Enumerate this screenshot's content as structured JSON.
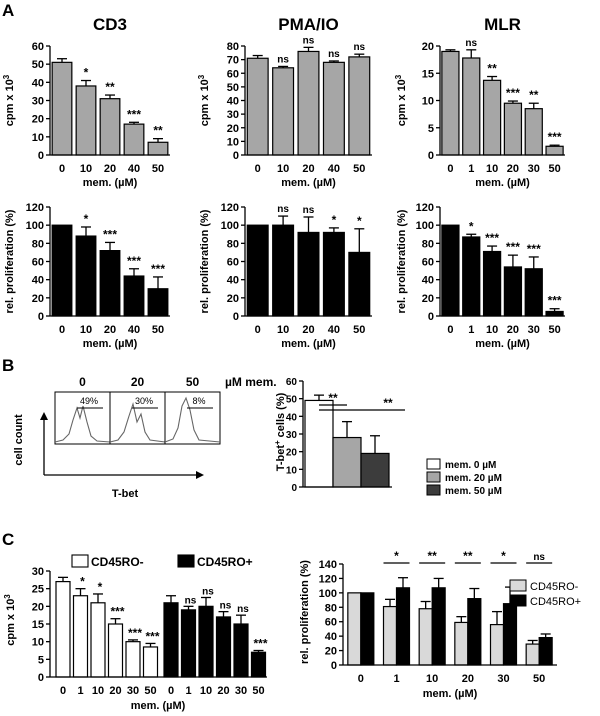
{
  "figure": {
    "panel_labels": [
      "A",
      "B",
      "C"
    ]
  },
  "colors": {
    "gray": "#a6a6a6",
    "black": "#000000",
    "white": "#ffffff",
    "lightgray": "#d9d9d9",
    "darkgray": "#3c3c3c"
  },
  "chart_data": [
    {
      "id": "A_CD3_cpm",
      "type": "bar",
      "title": "CD3",
      "ylabel": "cpm x 10",
      "ylabel_sup": "3",
      "xlabel": "mem. (µM)",
      "categories": [
        "0",
        "10",
        "20",
        "40",
        "50"
      ],
      "values": [
        51,
        38,
        31,
        17,
        7
      ],
      "errors": [
        2,
        3,
        2,
        1,
        2
      ],
      "significance": [
        "",
        "*",
        "**",
        "***",
        "**"
      ],
      "ylim": [
        0,
        60
      ],
      "yticks": [
        "0",
        "10",
        "20",
        "30",
        "40",
        "50",
        "60"
      ],
      "fill": "gray"
    },
    {
      "id": "A_PMAIO_cpm",
      "type": "bar",
      "title": "PMA/IO",
      "ylabel": "cpm x 10",
      "ylabel_sup": "3",
      "xlabel": "mem. (µM)",
      "categories": [
        "0",
        "10",
        "20",
        "40",
        "50"
      ],
      "values": [
        71,
        64,
        76,
        68,
        72
      ],
      "errors": [
        2,
        1,
        3,
        1,
        2
      ],
      "significance": [
        "",
        "ns",
        "ns",
        "ns",
        "ns"
      ],
      "ylim": [
        0,
        80
      ],
      "yticks": [
        "0",
        "10",
        "20",
        "30",
        "40",
        "50",
        "60",
        "70",
        "80"
      ],
      "fill": "gray"
    },
    {
      "id": "A_MLR_cpm",
      "type": "bar",
      "title": "MLR",
      "ylabel": "cpm x 10",
      "ylabel_sup": "3",
      "xlabel": "mem. (µM)",
      "categories": [
        "0",
        "1",
        "10",
        "20",
        "30",
        "50"
      ],
      "values": [
        19,
        17.8,
        13.7,
        9.5,
        8.5,
        1.6
      ],
      "errors": [
        0.3,
        1.5,
        0.7,
        0.4,
        1,
        0.2
      ],
      "significance": [
        "",
        "ns",
        "**",
        "***",
        "**",
        "***"
      ],
      "ylim": [
        0,
        20
      ],
      "yticks": [
        "0",
        "5",
        "10",
        "15",
        "20"
      ],
      "fill": "gray"
    },
    {
      "id": "A_CD3_rel",
      "type": "bar",
      "title": "",
      "ylabel": "rel. proliferation (%)",
      "xlabel": "mem. (µM)",
      "categories": [
        "0",
        "10",
        "20",
        "40",
        "50"
      ],
      "values": [
        100,
        88,
        72,
        44,
        30
      ],
      "errors": [
        0,
        10,
        9,
        8,
        13
      ],
      "significance": [
        "",
        "*",
        "***",
        "***",
        "***"
      ],
      "ylim": [
        0,
        120
      ],
      "yticks": [
        "0",
        "20",
        "40",
        "60",
        "80",
        "100",
        "120"
      ],
      "fill": "black"
    },
    {
      "id": "A_PMAIO_rel",
      "type": "bar",
      "title": "",
      "ylabel": "rel. proliferation (%)",
      "xlabel": "mem. (µM)",
      "categories": [
        "0",
        "10",
        "20",
        "40",
        "50"
      ],
      "values": [
        100,
        100,
        92,
        92,
        70
      ],
      "errors": [
        0,
        10,
        17,
        5,
        26
      ],
      "significance": [
        "",
        "ns",
        "ns",
        "*",
        "*"
      ],
      "ylim": [
        0,
        120
      ],
      "yticks": [
        "0",
        "20",
        "40",
        "60",
        "80",
        "100",
        "120"
      ],
      "fill": "black"
    },
    {
      "id": "A_MLR_rel",
      "type": "bar",
      "title": "",
      "ylabel": "rel. proliferation (%)",
      "xlabel": "mem. (µM)",
      "categories": [
        "0",
        "1",
        "10",
        "20",
        "30",
        "50"
      ],
      "values": [
        100,
        87,
        71,
        54,
        52,
        5
      ],
      "errors": [
        0,
        3,
        6,
        13,
        13,
        3
      ],
      "significance": [
        "",
        "*",
        "***",
        "***",
        "***",
        "***"
      ],
      "ylim": [
        0,
        120
      ],
      "yticks": [
        "0",
        "20",
        "40",
        "60",
        "80",
        "100",
        "120"
      ],
      "fill": "black"
    },
    {
      "id": "B_histograms",
      "type": "histogram",
      "ylabel": "cell count",
      "xlabel": "T-bet",
      "header_suffix": "µM mem.",
      "panels": [
        {
          "dose": "0",
          "percent": "49%"
        },
        {
          "dose": "20",
          "percent": "30%"
        },
        {
          "dose": "50",
          "percent": "8%"
        }
      ]
    },
    {
      "id": "B_Tbet",
      "type": "bar",
      "ylabel": "T-bet",
      "ylabel_sup": "+",
      "ylabel_rest": "cells (%)",
      "categories": [
        "0",
        "20",
        "50"
      ],
      "values": [
        49,
        28,
        19
      ],
      "errors": [
        3,
        9,
        10
      ],
      "fills": [
        "white",
        "gray",
        "darkgray"
      ],
      "ylim": [
        0,
        60
      ],
      "yticks": [
        "0",
        "10",
        "20",
        "30",
        "40",
        "50",
        "60"
      ],
      "significance": [
        "**",
        "**"
      ],
      "legend": [
        "mem.   0 µM",
        "mem. 20 µM",
        "mem. 50 µM"
      ]
    },
    {
      "id": "C_cpm",
      "type": "bar",
      "ylabel": "cpm x 10",
      "ylabel_sup": "3",
      "xlabel": "mem. (µM)",
      "ylim": [
        0,
        30
      ],
      "yticks": [
        "0",
        "5",
        "10",
        "15",
        "20",
        "25",
        "30"
      ],
      "series": [
        {
          "name": "CD45RO-",
          "fill": "white",
          "categories": [
            "0",
            "1",
            "10",
            "20",
            "30",
            "50"
          ],
          "values": [
            27,
            23,
            21,
            15,
            10,
            8.5
          ],
          "errors": [
            1.2,
            2,
            2.5,
            1.5,
            0.5,
            1
          ],
          "significance": [
            "",
            "*",
            "*",
            "***",
            "***",
            "***"
          ]
        },
        {
          "name": "CD45RO+",
          "fill": "black",
          "categories": [
            "0",
            "1",
            "10",
            "20",
            "30",
            "50"
          ],
          "values": [
            21,
            19,
            20,
            17,
            15,
            7
          ],
          "errors": [
            2,
            1,
            2.5,
            1.5,
            2.5,
            0.5
          ],
          "significance": [
            "",
            "ns",
            "ns",
            "ns",
            "ns",
            "***"
          ]
        }
      ]
    },
    {
      "id": "C_rel",
      "type": "bar",
      "ylabel": "rel. proliferation (%)",
      "xlabel": "mem. (µM)",
      "categories": [
        "0",
        "1",
        "10",
        "20",
        "30",
        "50"
      ],
      "ylim": [
        0,
        140
      ],
      "yticks": [
        "0",
        "20",
        "40",
        "60",
        "80",
        "100",
        "120",
        "140"
      ],
      "series": [
        {
          "name": "CD45RO-",
          "fill": "lightgray",
          "values": [
            100,
            81,
            78,
            59,
            56,
            29
          ],
          "errors": [
            0,
            10,
            10,
            8,
            18,
            5
          ]
        },
        {
          "name": "CD45RO+",
          "fill": "black",
          "values": [
            100,
            107,
            107,
            92,
            85,
            38
          ],
          "errors": [
            0,
            14,
            13,
            14,
            23,
            5
          ]
        }
      ],
      "significance": [
        "",
        "*",
        "**",
        "**",
        "*",
        "ns"
      ]
    }
  ]
}
